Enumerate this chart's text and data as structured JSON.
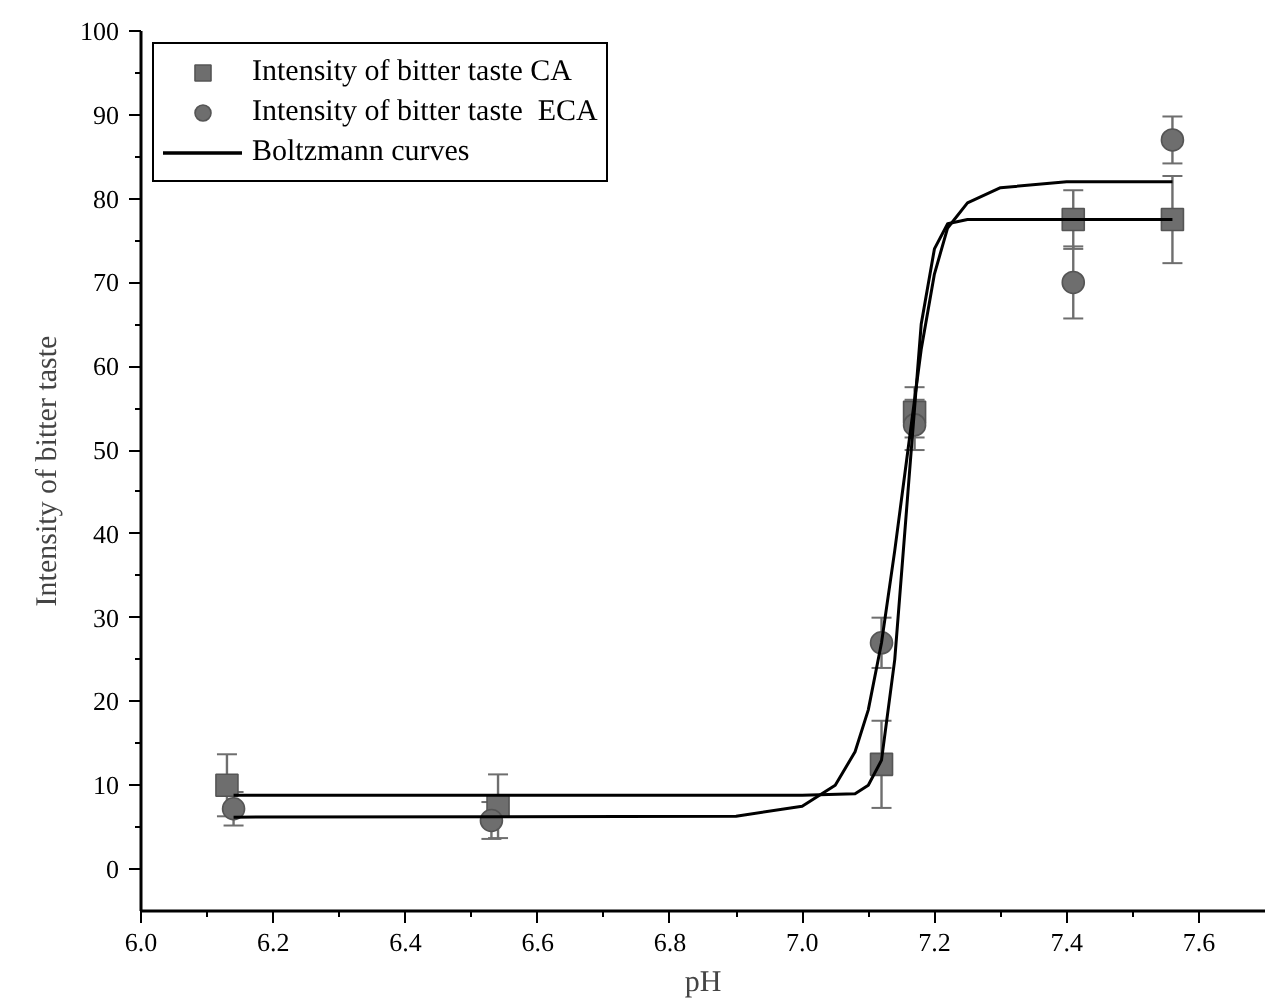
{
  "chart_data": {
    "type": "scatter",
    "xlabel": "pH",
    "ylabel": "Intensity of bitter taste",
    "xlim": [
      6.0,
      7.7
    ],
    "xticks": [
      {
        "value": 6.0,
        "label": "6.0"
      },
      6.2,
      6.4,
      6.6,
      6.8,
      {
        "value": 7.0,
        "label": "7.0"
      },
      7.2,
      7.4,
      7.6
    ],
    "ylim": [
      -5,
      100
    ],
    "yticks": [
      0,
      10,
      20,
      30,
      40,
      50,
      60,
      70,
      80,
      90,
      100
    ],
    "grid": false,
    "legend": "top left",
    "series": [
      {
        "name": "Intensity of bitter taste CA",
        "marker": "square",
        "color": "#6e6e6e",
        "x": [
          6.13,
          6.54,
          7.12,
          7.17,
          7.41,
          7.56
        ],
        "values": [
          10,
          7.5,
          12.5,
          54.5,
          77.5,
          77.5
        ],
        "errors": [
          3.7,
          3.8,
          5.2,
          3,
          3.5,
          5.2
        ]
      },
      {
        "name": "Intensity of bitter taste  ECA",
        "marker": "circle",
        "color": "#6e6e6e",
        "x": [
          6.14,
          6.53,
          7.12,
          7.17,
          7.41,
          7.56
        ],
        "values": [
          7.2,
          5.8,
          27,
          53,
          70,
          87
        ],
        "errors": [
          2,
          2.2,
          3,
          3,
          4.3,
          2.8
        ]
      },
      {
        "name": "Boltzmann curves",
        "type": "line",
        "color": "#000000",
        "line_style": "solid",
        "x": [
          6.14,
          7.0,
          7.08,
          7.1,
          7.12,
          7.14,
          7.16,
          7.17,
          7.18,
          7.2,
          7.22,
          7.25,
          7.56
        ],
        "values": [
          8.8,
          8.8,
          9,
          10,
          13,
          25,
          45,
          55,
          65,
          74,
          77,
          77.5,
          77.5
        ]
      },
      {
        "type": "line",
        "color": "#000000",
        "line_style": "solid",
        "x": [
          6.14,
          6.9,
          7.0,
          7.05,
          7.08,
          7.1,
          7.12,
          7.14,
          7.16,
          7.18,
          7.2,
          7.22,
          7.25,
          7.3,
          7.4,
          7.56
        ],
        "values": [
          6.2,
          6.3,
          7.5,
          10,
          14,
          19,
          27,
          38,
          50,
          62,
          71,
          76.5,
          79.5,
          81.3,
          82,
          82
        ]
      }
    ]
  }
}
